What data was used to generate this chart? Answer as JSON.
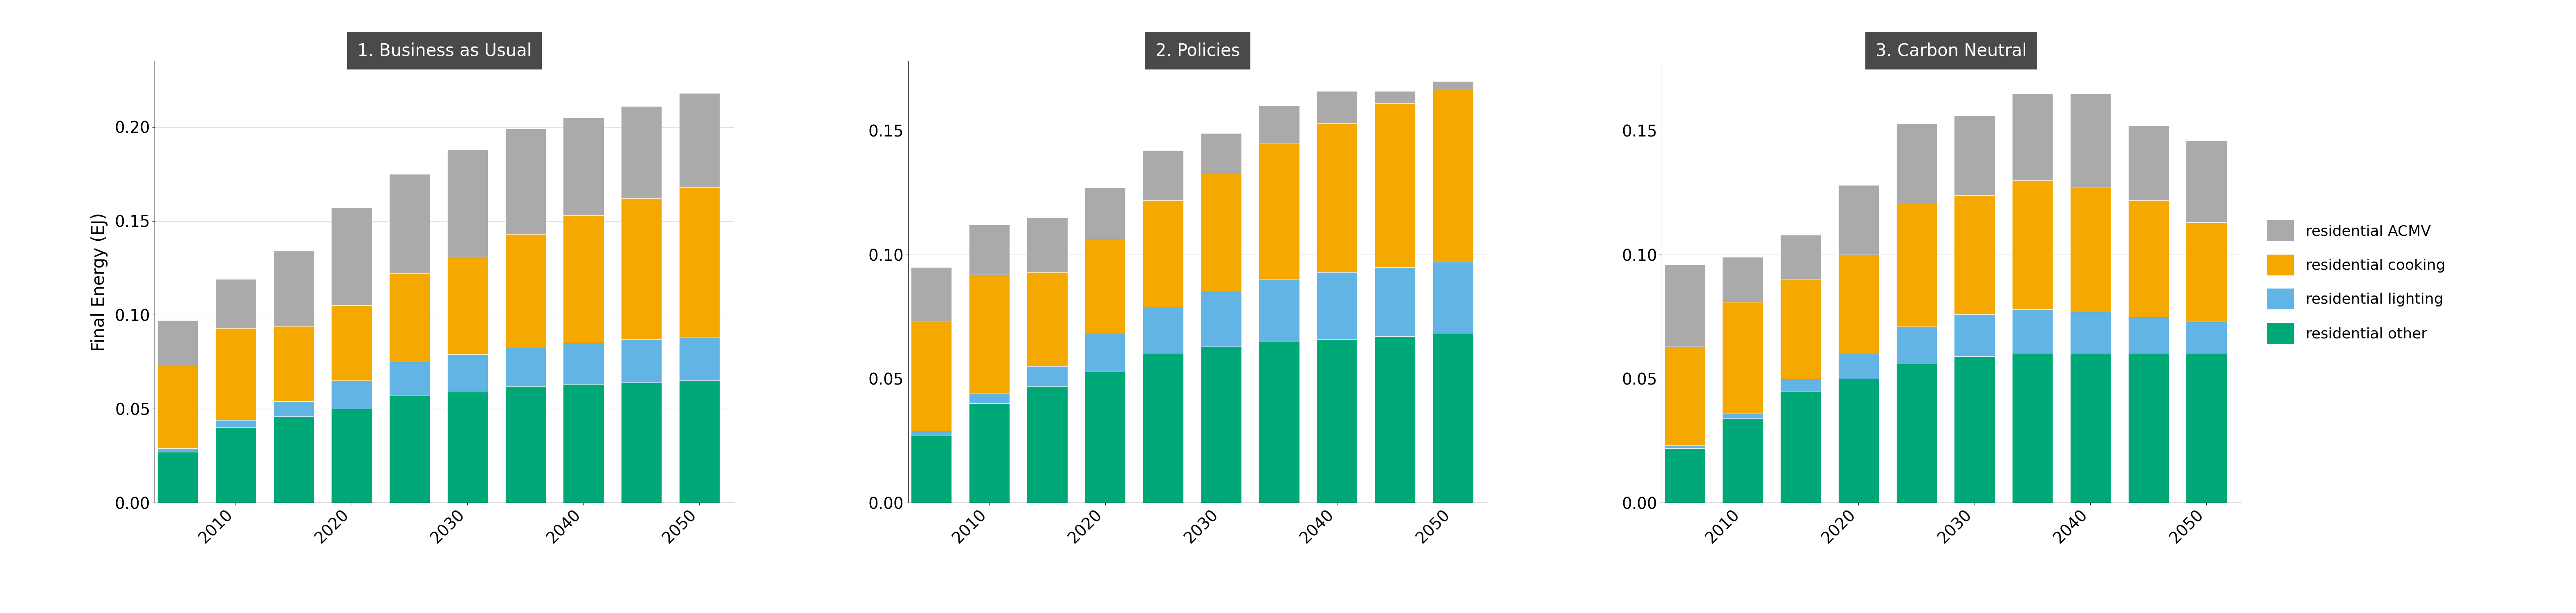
{
  "scenarios": [
    "1. Business as Usual",
    "2. Policies",
    "3. Carbon Neutral"
  ],
  "years": [
    2005,
    2010,
    2015,
    2020,
    2025,
    2030,
    2035,
    2040,
    2045,
    2050
  ],
  "label_years": [
    2010,
    2020,
    2030,
    2040,
    2050
  ],
  "colors": {
    "acmv": "#aaaaaa",
    "cooking": "#f5a800",
    "lighting": "#62b4e5",
    "other": "#00a878"
  },
  "legend_labels": [
    "residential ACMV",
    "residential cooking",
    "residential lighting",
    "residential other"
  ],
  "ylabel": "Final Energy (EJ)",
  "panel_title_bg": "#4a4a4a",
  "panel_title_fg": "#ffffff",
  "bau": {
    "other": [
      0.027,
      0.04,
      0.046,
      0.05,
      0.057,
      0.059,
      0.062,
      0.063,
      0.064,
      0.065
    ],
    "lighting": [
      0.002,
      0.004,
      0.008,
      0.015,
      0.018,
      0.02,
      0.021,
      0.022,
      0.023,
      0.023
    ],
    "cooking": [
      0.044,
      0.049,
      0.04,
      0.04,
      0.047,
      0.052,
      0.06,
      0.068,
      0.075,
      0.08
    ],
    "acmv": [
      0.024,
      0.026,
      0.04,
      0.052,
      0.053,
      0.057,
      0.056,
      0.052,
      0.049,
      0.05
    ]
  },
  "pol": {
    "other": [
      0.027,
      0.04,
      0.047,
      0.053,
      0.06,
      0.063,
      0.065,
      0.066,
      0.067,
      0.068
    ],
    "lighting": [
      0.002,
      0.004,
      0.008,
      0.015,
      0.019,
      0.022,
      0.025,
      0.027,
      0.028,
      0.029
    ],
    "cooking": [
      0.044,
      0.048,
      0.038,
      0.038,
      0.043,
      0.048,
      0.055,
      0.06,
      0.066,
      0.07
    ],
    "acmv": [
      0.022,
      0.02,
      0.022,
      0.021,
      0.02,
      0.016,
      0.015,
      0.013,
      0.005,
      0.003
    ]
  },
  "cn": {
    "other": [
      0.022,
      0.034,
      0.045,
      0.05,
      0.056,
      0.059,
      0.06,
      0.06,
      0.06,
      0.06
    ],
    "lighting": [
      0.001,
      0.002,
      0.005,
      0.01,
      0.015,
      0.017,
      0.018,
      0.017,
      0.015,
      0.013
    ],
    "cooking": [
      0.04,
      0.045,
      0.04,
      0.04,
      0.05,
      0.048,
      0.052,
      0.05,
      0.047,
      0.04
    ],
    "acmv": [
      0.033,
      0.018,
      0.018,
      0.028,
      0.032,
      0.032,
      0.035,
      0.038,
      0.03,
      0.033
    ]
  },
  "bau_ylim": [
    0,
    0.235
  ],
  "bau_yticks": [
    0.0,
    0.05,
    0.1,
    0.15,
    0.2
  ],
  "pol_ylim": [
    0,
    0.178
  ],
  "pol_yticks": [
    0.0,
    0.05,
    0.1,
    0.15
  ],
  "cn_ylim": [
    0,
    0.178
  ],
  "cn_yticks": [
    0.0,
    0.05,
    0.1,
    0.15
  ]
}
